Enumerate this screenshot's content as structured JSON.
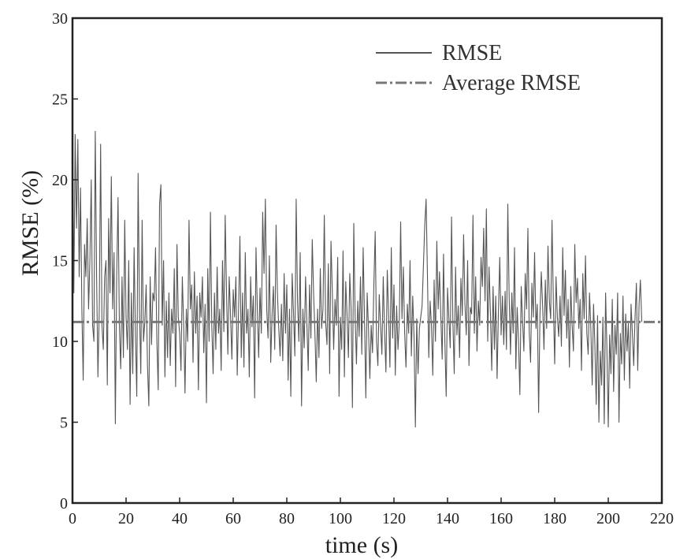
{
  "chart_data": {
    "type": "line",
    "xlabel": "time (s)",
    "ylabel": "RMSE  (%)",
    "xlim": [
      0,
      220
    ],
    "ylim": [
      0,
      30
    ],
    "x_ticks": [
      "0",
      "20",
      "40",
      "60",
      "80",
      "100",
      "120",
      "140",
      "160",
      "180",
      "200",
      "220"
    ],
    "y_ticks": [
      "0",
      "5",
      "10",
      "15",
      "20",
      "25",
      "30"
    ],
    "grid": false,
    "legend_position": "top-right",
    "series": [
      {
        "name": "RMSE",
        "style": "solid",
        "color": "#555555",
        "sample_interval_s": 0.5,
        "values": [
          24,
          13,
          22.8,
          17,
          22.5,
          14,
          19.5,
          12,
          7.6,
          16,
          14,
          17.6,
          12,
          15,
          20,
          11,
          10,
          23,
          14,
          7.8,
          12,
          22.2,
          11,
          9.5,
          14,
          15,
          7.3,
          17.6,
          13,
          20.2,
          12,
          15.5,
          4.9,
          14,
          18.9,
          11,
          8.3,
          14,
          9,
          17.5,
          11.5,
          9.5,
          15,
          6.1,
          13,
          8,
          15.8,
          10.5,
          6.6,
          20.4,
          12,
          8,
          17.5,
          10,
          11.2,
          13.5,
          8.5,
          6,
          14,
          9.8,
          13,
          12.5,
          15.8,
          10,
          7,
          18.5,
          19.7,
          11,
          15,
          7.8,
          12.5,
          9,
          13,
          8.5,
          12,
          10.5,
          14.5,
          7.2,
          16,
          11.5,
          10.5,
          8.2,
          14,
          11,
          6.8,
          12,
          10,
          17.5,
          12,
          13.5,
          8.7,
          14.3,
          10.5,
          12.8,
          7,
          13,
          11.5,
          14,
          9.3,
          12.3,
          6.2,
          14.5,
          10,
          18,
          11,
          8,
          13,
          9.5,
          14.6,
          10.5,
          12,
          8.2,
          15,
          10.6,
          17.8,
          13,
          9.2,
          14,
          11.6,
          8.9,
          13.2,
          11.5,
          14,
          7.9,
          12,
          16.5,
          9,
          13,
          8.4,
          15.5,
          10.5,
          12,
          7.8,
          14,
          10.9,
          12.8,
          6.5,
          15.8,
          12,
          9,
          13.3,
          10.5,
          18,
          14.2,
          18.8,
          12,
          10.2,
          15.3,
          8.7,
          11.6,
          13.4,
          9.5,
          17.2,
          13,
          10.8,
          9.1,
          12.3,
          8.8,
          14.2,
          10.5,
          13.5,
          7.6,
          12,
          6.6,
          14.2,
          11.8,
          9.1,
          18.8,
          12.5,
          10,
          15.5,
          6,
          12,
          9.6,
          14,
          11.1,
          8.2,
          13.5,
          10.2,
          16.3,
          13,
          10.5,
          7.5,
          12,
          9,
          14.5,
          10.8,
          12,
          17.8,
          11.2,
          9.8,
          14.8,
          8,
          16.2,
          13,
          9.5,
          12.6,
          11,
          15.2,
          6.6,
          11.5,
          9.5,
          15.6,
          7.8,
          13.7,
          11.6,
          9,
          14.2,
          12,
          5.9,
          17.3,
          11.6,
          8.6,
          12.5,
          10.3,
          14,
          9.2,
          15.8,
          11.5,
          6.5,
          13,
          10.8,
          7.7,
          11,
          9.3,
          13.5,
          16.8,
          10,
          8.5,
          12.9,
          11,
          9.2,
          14,
          10.6,
          8.1,
          14.4,
          11.7,
          8.4,
          15.8,
          10.2,
          13.5,
          7.9,
          12.2,
          9.5,
          11.2,
          17.4,
          11.4,
          14.6,
          10.5,
          8.4,
          12.3,
          10.5,
          15,
          9.1,
          12.8,
          10.3,
          4.7,
          11.4,
          8,
          10.8,
          11.5,
          12.2,
          14.7,
          17.2,
          18.8,
          14.1,
          9,
          12.5,
          11,
          7.9,
          13.8,
          10,
          16.2,
          12,
          14.3,
          11.5,
          8.9,
          15.4,
          10,
          6.6,
          13.3,
          11.4,
          9.6,
          17.7,
          11.2,
          8,
          14.6,
          10.4,
          12.2,
          9,
          13.9,
          11.6,
          16.6,
          12.3,
          10.4,
          15,
          8.5,
          12.1,
          11.7,
          17.8,
          10.5,
          14,
          9.4,
          12.5,
          11,
          15.2,
          13.4,
          17,
          12.5,
          18.2,
          10,
          14.6,
          11.8,
          8.2,
          13.4,
          9.5,
          12.8,
          7.7,
          11.9,
          15.2,
          10.4,
          12.8,
          9.8,
          13.1,
          9.5,
          18.5,
          12.8,
          9.2,
          13,
          10.5,
          15.8,
          8.3,
          12.1,
          10,
          6.7,
          13.4,
          11.3,
          9.4,
          14.2,
          12,
          17,
          10.6,
          8.7,
          13.6,
          11.5,
          15.5,
          10.8,
          12.3,
          5.6,
          11.6,
          14.3,
          12.2,
          9.5,
          13.8,
          10.8,
          15.9,
          12.5,
          11.4,
          17.5,
          12.4,
          8.6,
          14,
          11.5,
          10.3,
          12.8,
          9.7,
          15.8,
          11.6,
          14.4,
          10.2,
          12.6,
          8.4,
          13.4,
          11,
          9.4,
          16,
          12.4,
          13.9,
          10.8,
          12.6,
          8.2,
          14.2,
          11.4,
          15.3,
          10.5,
          9.2,
          13,
          10.8,
          7.3,
          12.3,
          9.8,
          6.1,
          11.6,
          5,
          9.4,
          7.3,
          11.5,
          4.9,
          13,
          9.5,
          4.7,
          10.4,
          8,
          12.6,
          6.9,
          11,
          9.2,
          13,
          5,
          10.5,
          8.6,
          12.8,
          7.6,
          11.7,
          9.4,
          11.1,
          7.1,
          12.3,
          10.5,
          8.5,
          11.5,
          13.6,
          8.2,
          12.3,
          13.8,
          11.2
        ]
      },
      {
        "name": "Average RMSE",
        "style": "dash-dot",
        "color": "#777777",
        "constant_value": 11.2
      }
    ]
  }
}
